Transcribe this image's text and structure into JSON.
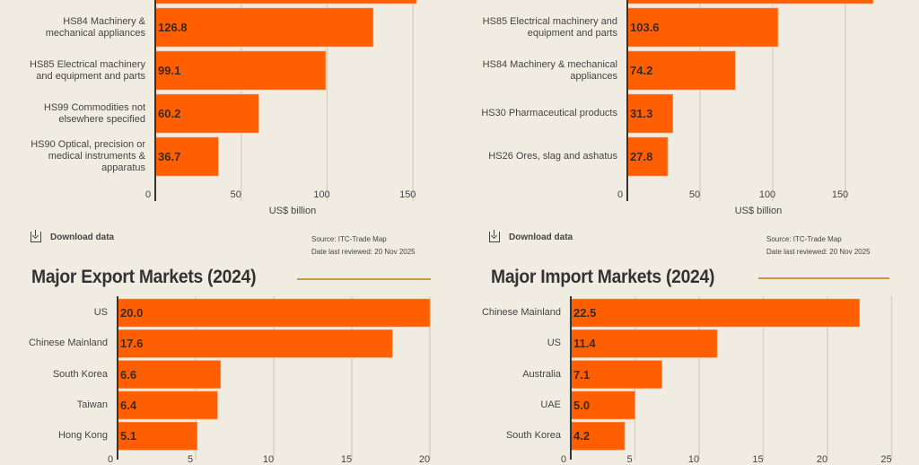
{
  "colors": {
    "background": "#f1ece1",
    "bar": "#ff5f00",
    "accent_rule": "#c9993f",
    "axis": "#333333",
    "grid": "#d8d2c6"
  },
  "chart_data": [
    {
      "type": "bar",
      "orientation": "horizontal",
      "categories": [
        "",
        "HS84 Machinery & mechanical appliances",
        "HS85 Electrical machinery and equipment and parts",
        "HS99 Commodities not elsewhere specified",
        "HS90 Optical, precision or medical instruments & apparatus"
      ],
      "values": [
        152,
        126.8,
        99.1,
        60.2,
        36.7
      ],
      "value_labels": [
        "",
        "126.8",
        "99.1",
        "60.2",
        "36.7"
      ],
      "xticks": [
        "0",
        "50",
        "100",
        "150"
      ],
      "xlabel": "US$ billion",
      "xlim": [
        0,
        155
      ],
      "grid": true
    },
    {
      "type": "bar",
      "orientation": "horizontal",
      "categories": [
        "",
        "HS85 Electrical machinery and equipment and parts",
        "HS84 Machinery & mechanical appliances",
        "HS30 Pharmaceutical products",
        "HS26 Ores, slag and ashatus"
      ],
      "values": [
        169,
        103.6,
        74.2,
        31.3,
        27.8
      ],
      "value_labels": [
        "",
        "103.6",
        "74.2",
        "31.3",
        "27.8"
      ],
      "xticks": [
        "0",
        "50",
        "100",
        "150"
      ],
      "xlabel": "US$ billion",
      "xlim": [
        0,
        175
      ],
      "grid": true
    },
    {
      "type": "bar",
      "orientation": "horizontal",
      "title": "Major Export Markets (2024)",
      "categories": [
        "US",
        "Chinese Mainland",
        "South Korea",
        "Taiwan",
        "Hong Kong"
      ],
      "values": [
        20.0,
        17.6,
        6.6,
        6.4,
        5.1
      ],
      "value_labels": [
        "20.0",
        "17.6",
        "6.6",
        "6.4",
        "5.1"
      ],
      "xticks": [
        "0",
        "5",
        "10",
        "15",
        "20"
      ],
      "xlim": [
        0,
        20
      ],
      "grid": true
    },
    {
      "type": "bar",
      "orientation": "horizontal",
      "title": "Major Import Markets (2024)",
      "categories": [
        "Chinese Mainland",
        "US",
        "Australia",
        "UAE",
        "South Korea"
      ],
      "values": [
        22.5,
        11.4,
        7.1,
        5.0,
        4.2
      ],
      "value_labels": [
        "22.5",
        "11.4",
        "7.1",
        "5.0",
        "4.2"
      ],
      "xticks": [
        "0",
        "5",
        "10",
        "15",
        "20",
        "25"
      ],
      "xlim": [
        0,
        25
      ],
      "grid": true
    }
  ],
  "footers": [
    {
      "download_label": "Download data",
      "source": "Source: ITC-Trade Map",
      "reviewed": "Date last reviewed: 20 Nov 2025",
      "icon": "download-icon"
    },
    {
      "download_label": "Download data",
      "source": "Source: ITC-Trade Map",
      "reviewed": "Date last reviewed: 20 Nov 2025",
      "icon": "download-icon"
    }
  ]
}
